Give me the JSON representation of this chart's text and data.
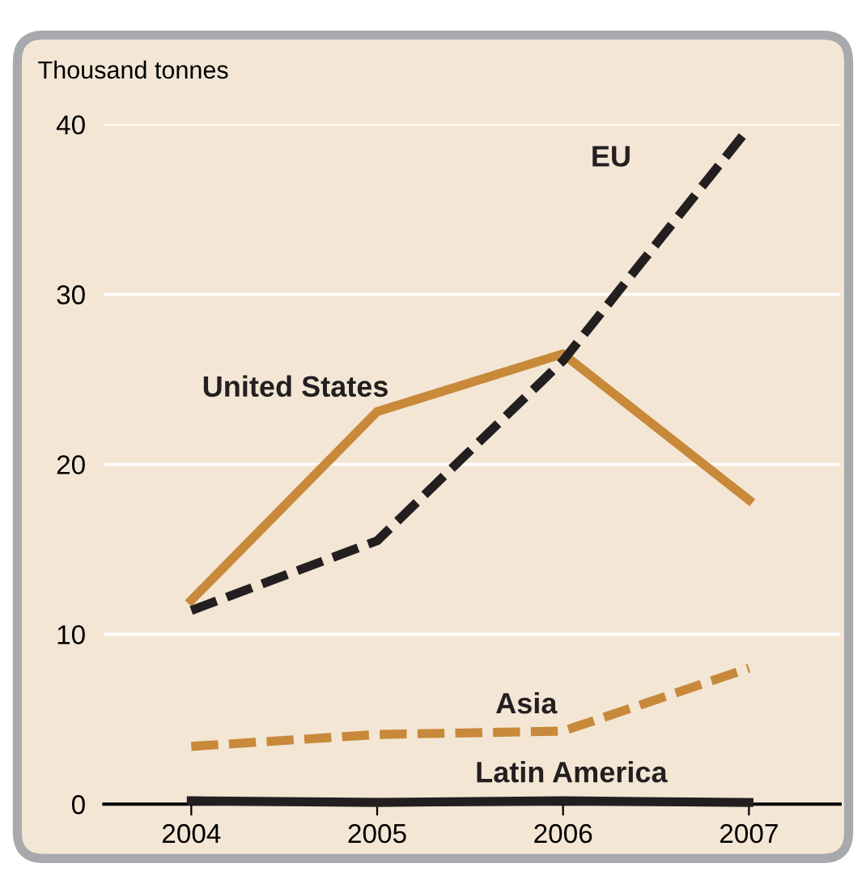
{
  "chart_data": {
    "type": "line",
    "ylabel": "Thousand tonnes",
    "x": [
      2004,
      2005,
      2006,
      2007
    ],
    "series": [
      {
        "name": "United States",
        "color": "#c8893a",
        "values": [
          12.0,
          23.1,
          26.5,
          17.9
        ],
        "line_style": "solid"
      },
      {
        "name": "EU",
        "color": "#231f20",
        "values": [
          11.4,
          15.5,
          26.1,
          39.8
        ],
        "line_style": "dashed"
      },
      {
        "name": "Asia",
        "color": "#c8893a",
        "values": [
          3.4,
          4.1,
          4.3,
          8.0
        ],
        "line_style": "dashed"
      },
      {
        "name": "Latin America",
        "color": "#231f20",
        "values": [
          0.2,
          0.1,
          0.2,
          0.1
        ],
        "line_style": "solid"
      }
    ],
    "xlim": [
      2003.53,
      2007.49
    ],
    "xticks": [
      2004,
      2005,
      2006,
      2007
    ],
    "ylim": [
      0,
      40
    ],
    "yticks": [
      0,
      10,
      20,
      30,
      40
    ],
    "grid": "y",
    "legend": false,
    "marker": "none"
  }
}
